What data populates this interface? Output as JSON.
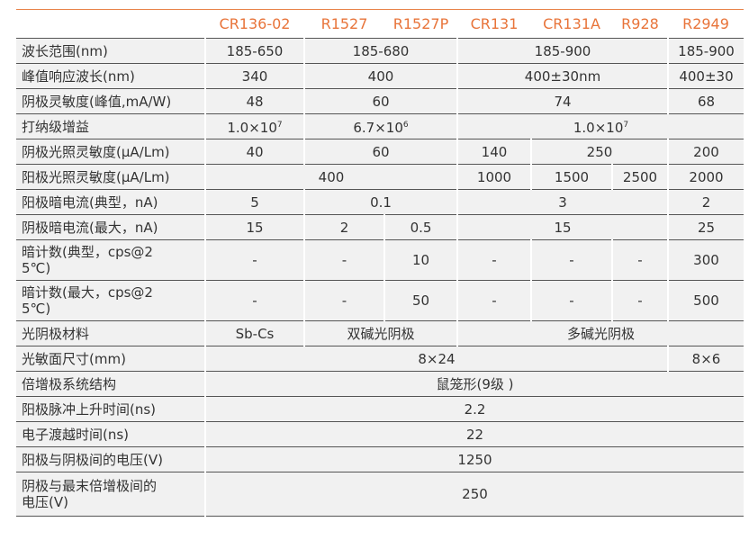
{
  "header": {
    "columns": [
      "",
      "CR136-02",
      "R1527",
      "R1527P",
      "CR131",
      "CR131A",
      "R928",
      "R2949"
    ]
  },
  "accent_color": "#e8743a",
  "rows": [
    {
      "label": "波长范围(nm)",
      "cells": [
        {
          "v": "185-650",
          "span": 1
        },
        {
          "v": "185-680",
          "span": 2
        },
        {
          "v": "185-900",
          "span": 3
        },
        {
          "v": "185-900",
          "span": 1
        }
      ]
    },
    {
      "label": "峰值响应波长(nm)",
      "cells": [
        {
          "v": "340",
          "span": 1
        },
        {
          "v": "400",
          "span": 2
        },
        {
          "v": "400±30nm",
          "span": 3
        },
        {
          "v": "400±30",
          "span": 1
        }
      ]
    },
    {
      "label": "阴极灵敏度(峰值,mA/W)",
      "cells": [
        {
          "v": "48",
          "span": 1
        },
        {
          "v": "60",
          "span": 2
        },
        {
          "v": "74",
          "span": 3
        },
        {
          "v": "68",
          "span": 1
        }
      ]
    },
    {
      "label": "打纳级增益",
      "cells": [
        {
          "v": "1.0×10",
          "sup": "7",
          "span": 1
        },
        {
          "v": "6.7×10",
          "sup": "6",
          "span": 2
        },
        {
          "v": "1.0×10",
          "sup": "7",
          "span": 4
        }
      ]
    },
    {
      "label": "阴极光照灵敏度(μA/Lm)",
      "cells": [
        {
          "v": "40",
          "span": 1
        },
        {
          "v": "60",
          "span": 2
        },
        {
          "v": "140",
          "span": 1
        },
        {
          "v": "250",
          "span": 2
        },
        {
          "v": "200",
          "span": 1
        }
      ]
    },
    {
      "label": "阳极光照灵敏度(μA/Lm)",
      "cells": [
        {
          "v": "400",
          "span": 3
        },
        {
          "v": "1000",
          "span": 1
        },
        {
          "v": "1500",
          "span": 1
        },
        {
          "v": "2500",
          "span": 1
        },
        {
          "v": "2000",
          "span": 1
        }
      ]
    },
    {
      "label": "阳极暗电流(典型，nA)",
      "cells": [
        {
          "v": "5",
          "span": 1
        },
        {
          "v": "0.1",
          "span": 2
        },
        {
          "v": "3",
          "span": 3
        },
        {
          "v": "2",
          "span": 1
        }
      ]
    },
    {
      "label": "阴极暗电流(最大，nA)",
      "cells": [
        {
          "v": "15",
          "span": 1
        },
        {
          "v": "2",
          "span": 1
        },
        {
          "v": "0.5",
          "span": 1
        },
        {
          "v": "15",
          "span": 3
        },
        {
          "v": "25",
          "span": 1
        }
      ]
    },
    {
      "label": "暗计数(典型，cps@25℃)",
      "tall": true,
      "cells": [
        {
          "v": "-",
          "span": 1
        },
        {
          "v": "-",
          "span": 1
        },
        {
          "v": "10",
          "span": 1
        },
        {
          "v": "-",
          "span": 1
        },
        {
          "v": "-",
          "span": 1
        },
        {
          "v": "-",
          "span": 1
        },
        {
          "v": "300",
          "span": 1
        }
      ]
    },
    {
      "label": "暗计数(最大，cps@25℃)",
      "tall": true,
      "cells": [
        {
          "v": "-",
          "span": 1
        },
        {
          "v": "-",
          "span": 1
        },
        {
          "v": "50",
          "span": 1
        },
        {
          "v": "-",
          "span": 1
        },
        {
          "v": "-",
          "span": 1
        },
        {
          "v": "-",
          "span": 1
        },
        {
          "v": "500",
          "span": 1
        }
      ]
    },
    {
      "label": "光阴极材料",
      "cells": [
        {
          "v": "Sb-Cs",
          "span": 1
        },
        {
          "v": "双碱光阴极",
          "span": 2
        },
        {
          "v": "多碱光阴极",
          "span": 4
        }
      ]
    },
    {
      "label": "光敏面尺寸(mm)",
      "cells": [
        {
          "v": "8×24",
          "span": 6
        },
        {
          "v": "8×6",
          "span": 1
        }
      ]
    },
    {
      "label": "倍增极系统结构",
      "cells": [
        {
          "v": "鼠笼形(9级 )",
          "span": 7
        }
      ]
    },
    {
      "label": "阳极脉冲上升时间(ns)",
      "cells": [
        {
          "v": "2.2",
          "span": 7
        }
      ]
    },
    {
      "label": "电子渡越时间(ns)",
      "cells": [
        {
          "v": "22",
          "span": 7
        }
      ]
    },
    {
      "label": "阳极与阴极间的电压(V)",
      "cells": [
        {
          "v": "1250",
          "span": 7
        }
      ]
    },
    {
      "label": "阴极与最末倍增极间的电压(V)",
      "tall": true,
      "cells": [
        {
          "v": "250",
          "span": 7
        }
      ]
    }
  ]
}
